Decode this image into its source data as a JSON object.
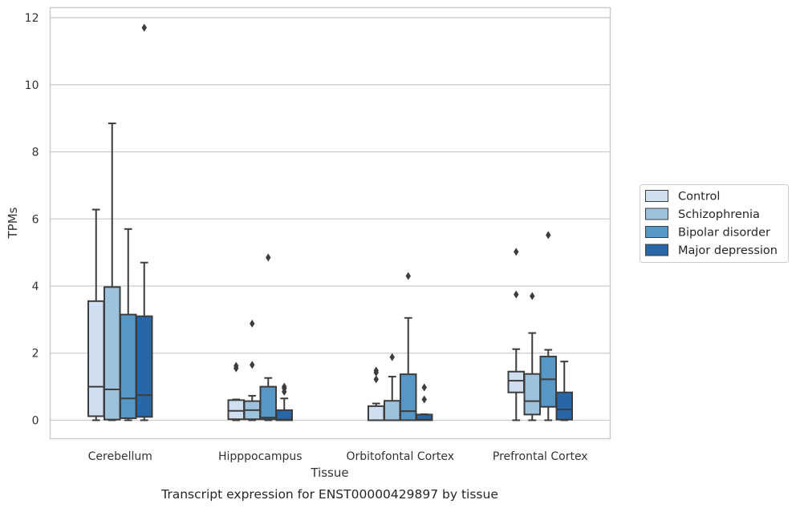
{
  "chart_data": {
    "type": "boxplot",
    "title": "",
    "caption": "Transcript expression for ENST00000429897 by tissue",
    "xlabel": "Tissue",
    "ylabel": "TPMs",
    "ylim": [
      -0.55,
      12.3
    ],
    "yticks": [
      0,
      2,
      4,
      6,
      8,
      10,
      12
    ],
    "grid": "horizontal",
    "legend_position": "right",
    "categories": [
      "Cerebellum",
      "Hipppocampus",
      "Orbitofontal Cortex",
      "Prefrontal Cortex"
    ],
    "series": [
      {
        "name": "Control",
        "color": "#cfdff0",
        "boxes": [
          {
            "whislo": 0.0,
            "q1": 0.12,
            "med": 1.0,
            "q3": 3.55,
            "whishi": 6.28,
            "fliers": []
          },
          {
            "whislo": 0.0,
            "q1": 0.03,
            "med": 0.28,
            "q3": 0.6,
            "whishi": 0.62,
            "fliers": [
              1.55,
              1.62
            ]
          },
          {
            "whislo": 0.0,
            "q1": 0.0,
            "med": 0.0,
            "q3": 0.42,
            "whishi": 0.5,
            "fliers": [
              1.22,
              1.42,
              1.48
            ]
          },
          {
            "whislo": 0.0,
            "q1": 0.83,
            "med": 1.18,
            "q3": 1.45,
            "whishi": 2.12,
            "fliers": [
              3.75,
              5.02
            ]
          }
        ]
      },
      {
        "name": "Schizophrenia",
        "color": "#9cc2dd",
        "boxes": [
          {
            "whislo": 0.0,
            "q1": 0.02,
            "med": 0.92,
            "q3": 3.97,
            "whishi": 8.85,
            "fliers": []
          },
          {
            "whislo": 0.0,
            "q1": 0.03,
            "med": 0.3,
            "q3": 0.57,
            "whishi": 0.73,
            "fliers": [
              1.65,
              2.88
            ]
          },
          {
            "whislo": 0.0,
            "q1": 0.0,
            "med": 0.0,
            "q3": 0.58,
            "whishi": 1.3,
            "fliers": [
              1.88
            ]
          },
          {
            "whislo": 0.0,
            "q1": 0.17,
            "med": 0.57,
            "q3": 1.38,
            "whishi": 2.6,
            "fliers": [
              3.7
            ]
          }
        ]
      },
      {
        "name": "Bipolar disorder",
        "color": "#5697c6",
        "boxes": [
          {
            "whislo": 0.0,
            "q1": 0.06,
            "med": 0.65,
            "q3": 3.15,
            "whishi": 5.7,
            "fliers": []
          },
          {
            "whislo": 0.0,
            "q1": 0.03,
            "med": 0.08,
            "q3": 1.0,
            "whishi": 1.26,
            "fliers": [
              4.85
            ]
          },
          {
            "whislo": 0.0,
            "q1": 0.0,
            "med": 0.27,
            "q3": 1.37,
            "whishi": 3.05,
            "fliers": [
              4.3
            ]
          },
          {
            "whislo": 0.0,
            "q1": 0.4,
            "med": 1.22,
            "q3": 1.9,
            "whishi": 2.1,
            "fliers": [
              5.52
            ]
          }
        ]
      },
      {
        "name": "Major depression",
        "color": "#2767a8",
        "boxes": [
          {
            "whislo": 0.0,
            "q1": 0.1,
            "med": 0.75,
            "q3": 3.1,
            "whishi": 4.7,
            "fliers": [
              11.7
            ]
          },
          {
            "whislo": 0.0,
            "q1": 0.0,
            "med": 0.02,
            "q3": 0.3,
            "whishi": 0.65,
            "fliers": [
              0.85,
              0.95,
              1.0
            ]
          },
          {
            "whislo": 0.0,
            "q1": 0.0,
            "med": 0.02,
            "q3": 0.17,
            "whishi": 0.18,
            "fliers": [
              0.62,
              0.98
            ]
          },
          {
            "whislo": 0.0,
            "q1": 0.02,
            "med": 0.32,
            "q3": 0.83,
            "whishi": 1.75,
            "fliers": []
          }
        ]
      }
    ]
  }
}
